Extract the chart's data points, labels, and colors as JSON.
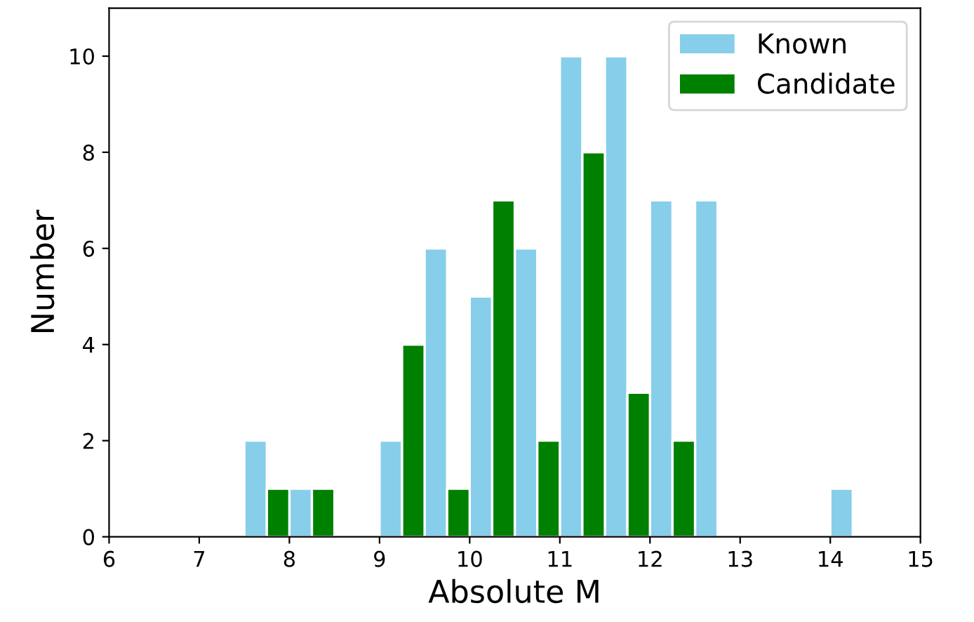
{
  "chart_data": {
    "type": "histogram",
    "xlabel": "Absolute M",
    "ylabel": "Number",
    "bins": [
      7.5,
      8.0,
      8.5,
      9.0,
      9.5,
      10.0,
      10.5,
      11.0,
      11.5,
      12.0,
      12.5,
      13.0,
      13.5,
      14.0,
      14.5
    ],
    "series": [
      {
        "name": "Known",
        "color": "#87ceeb",
        "values": [
          2,
          1,
          0,
          2,
          6,
          5,
          6,
          10,
          10,
          7,
          7,
          0,
          0,
          1
        ]
      },
      {
        "name": "Candidate",
        "color": "#008000",
        "values": [
          1,
          1,
          0,
          4,
          1,
          7,
          2,
          8,
          3,
          2,
          0,
          0,
          0,
          0
        ]
      }
    ],
    "xlim": [
      6,
      15
    ],
    "xticks": [
      6,
      7,
      8,
      9,
      10,
      11,
      12,
      13,
      14,
      15
    ],
    "ylim": [
      0,
      11
    ],
    "yticks": [
      0,
      2,
      4,
      6,
      8,
      10
    ],
    "legend": "top right",
    "grid": false
  }
}
